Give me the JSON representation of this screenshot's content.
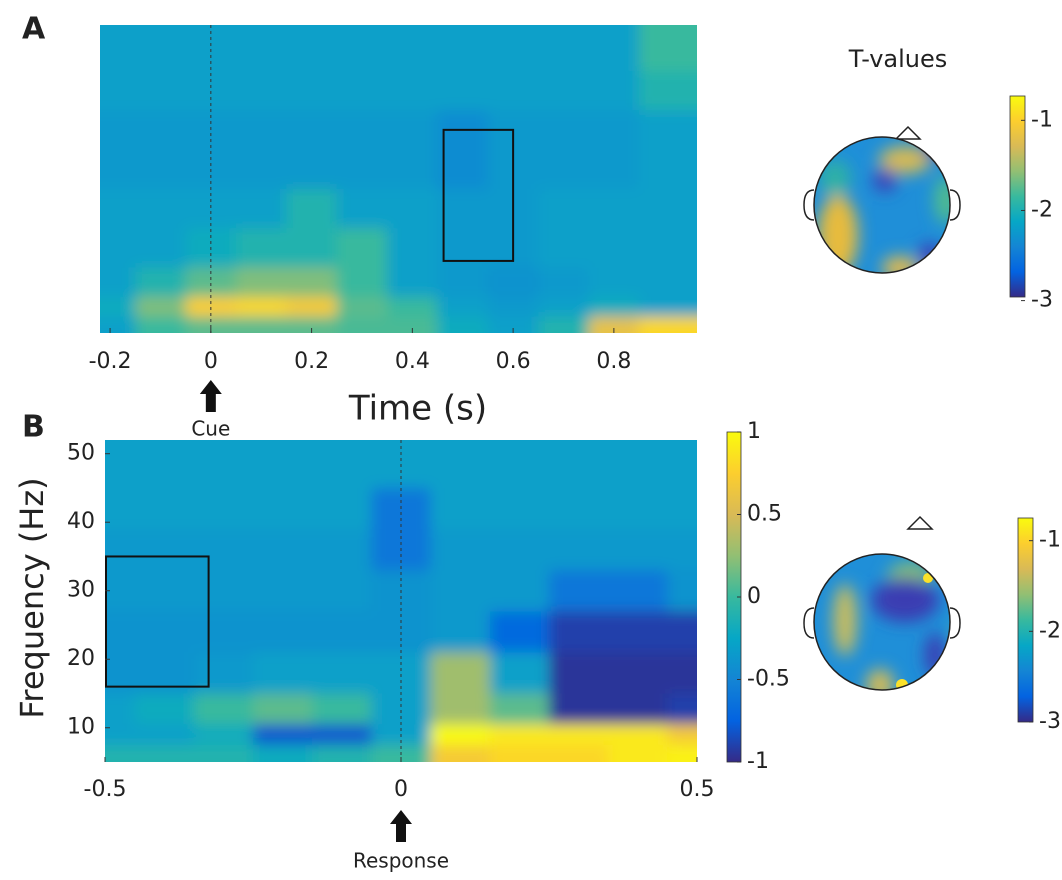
{
  "chart_data": [
    {
      "type": "heatmap",
      "panel": "A",
      "colormap": "parula",
      "xlabel": "Time (s)",
      "x": [
        -0.2,
        -0.1,
        0,
        0.1,
        0.2,
        0.3,
        0.4,
        0.5,
        0.6,
        0.7,
        0.8,
        0.9
      ],
      "y": [
        48,
        42,
        36,
        30,
        24,
        18,
        12,
        9,
        6
      ],
      "z": [
        [
          -0.3,
          -0.3,
          -0.3,
          -0.3,
          -0.3,
          -0.3,
          -0.3,
          -0.3,
          -0.3,
          -0.3,
          -0.3,
          0.0
        ],
        [
          -0.3,
          -0.3,
          -0.3,
          -0.3,
          -0.3,
          -0.3,
          -0.3,
          -0.3,
          -0.3,
          -0.3,
          -0.3,
          -0.1
        ],
        [
          -0.35,
          -0.35,
          -0.35,
          -0.35,
          -0.35,
          -0.35,
          -0.35,
          -0.45,
          -0.35,
          -0.35,
          -0.35,
          -0.3
        ],
        [
          -0.35,
          -0.35,
          -0.35,
          -0.35,
          -0.35,
          -0.35,
          -0.35,
          -0.45,
          -0.35,
          -0.35,
          -0.35,
          -0.3
        ],
        [
          -0.3,
          -0.3,
          -0.3,
          -0.3,
          -0.1,
          -0.3,
          -0.3,
          -0.35,
          -0.35,
          -0.3,
          -0.3,
          -0.3
        ],
        [
          -0.3,
          -0.3,
          -0.2,
          -0.1,
          -0.1,
          0.0,
          -0.3,
          -0.35,
          -0.35,
          -0.3,
          -0.3,
          -0.3
        ],
        [
          -0.3,
          -0.1,
          0.1,
          0.2,
          0.2,
          0.0,
          -0.3,
          -0.35,
          -0.4,
          -0.35,
          -0.3,
          -0.3
        ],
        [
          -0.2,
          0.2,
          0.75,
          0.8,
          0.7,
          0.1,
          0.0,
          -0.3,
          -0.35,
          -0.3,
          -0.2,
          -0.3
        ],
        [
          -0.3,
          0.0,
          0.1,
          0.1,
          0.1,
          0.05,
          0.05,
          -0.2,
          -0.3,
          -0.1,
          0.6,
          0.8
        ]
      ],
      "clim": [
        -1,
        1
      ],
      "xlim": [
        -0.22,
        0.965
      ],
      "ylim": [
        5,
        52
      ],
      "xticks": [
        -0.2,
        0,
        0.2,
        0.4,
        0.6,
        0.8
      ],
      "event_line": 0,
      "event_label": "Cue",
      "roi": {
        "x": [
          0.46,
          0.6
        ],
        "y": [
          16,
          36
        ]
      }
    },
    {
      "type": "heatmap",
      "panel": "B",
      "colormap": "parula",
      "ylabel": "Frequency (Hz)",
      "x": [
        -0.5,
        -0.4,
        -0.3,
        -0.2,
        -0.1,
        0,
        0.1,
        0.2,
        0.3,
        0.4,
        0.5
      ],
      "y": [
        48,
        42,
        36,
        30,
        24,
        18,
        12,
        9,
        6
      ],
      "z": [
        [
          -0.3,
          -0.3,
          -0.3,
          -0.3,
          -0.3,
          -0.3,
          -0.3,
          -0.3,
          -0.3,
          -0.3,
          -0.3
        ],
        [
          -0.3,
          -0.3,
          -0.3,
          -0.3,
          -0.3,
          -0.6,
          -0.3,
          -0.3,
          -0.3,
          -0.3,
          -0.3
        ],
        [
          -0.35,
          -0.35,
          -0.35,
          -0.35,
          -0.35,
          -0.6,
          -0.35,
          -0.35,
          -0.35,
          -0.35,
          -0.35
        ],
        [
          -0.35,
          -0.35,
          -0.35,
          -0.35,
          -0.35,
          -0.4,
          -0.35,
          -0.35,
          -0.6,
          -0.6,
          -0.4
        ],
        [
          -0.4,
          -0.4,
          -0.4,
          -0.4,
          -0.4,
          -0.4,
          -0.35,
          -0.7,
          -0.9,
          -0.9,
          -0.9
        ],
        [
          -0.4,
          -0.4,
          -0.35,
          -0.3,
          -0.3,
          -0.3,
          0.3,
          -0.3,
          -0.95,
          -0.95,
          -0.95
        ],
        [
          -0.3,
          -0.2,
          0.0,
          0.1,
          0.0,
          -0.3,
          0.3,
          0.1,
          -0.95,
          -0.95,
          -0.9
        ],
        [
          -0.3,
          -0.3,
          -0.2,
          -0.8,
          -0.8,
          -0.3,
          1.0,
          0.9,
          0.9,
          0.9,
          0.7
        ],
        [
          -0.1,
          -0.1,
          -0.1,
          -0.2,
          -0.1,
          0.0,
          0.7,
          0.8,
          0.8,
          0.9,
          0.95
        ]
      ],
      "clim": [
        -1,
        1
      ],
      "cticks": [
        -1,
        -0.5,
        0,
        0.5,
        1
      ],
      "xlim": [
        -0.5,
        0.5
      ],
      "ylim": [
        5,
        52
      ],
      "xticks": [
        -0.5,
        0,
        0.5
      ],
      "yticks": [
        10,
        20,
        30,
        40,
        50
      ],
      "event_line": 0,
      "event_label": "Response",
      "roi": {
        "x": [
          -0.5,
          -0.325
        ],
        "y": [
          16,
          35
        ]
      }
    },
    {
      "type": "topoplot",
      "title": "T-values",
      "colormap": "parula",
      "clim": [
        -2.96,
        -0.73
      ],
      "cticks": [
        -1,
        -2,
        -3
      ]
    },
    {
      "type": "topoplot",
      "colormap": "parula",
      "clim": [
        -3.0,
        -0.75
      ],
      "cticks": [
        -1,
        -2,
        -3
      ]
    }
  ]
}
